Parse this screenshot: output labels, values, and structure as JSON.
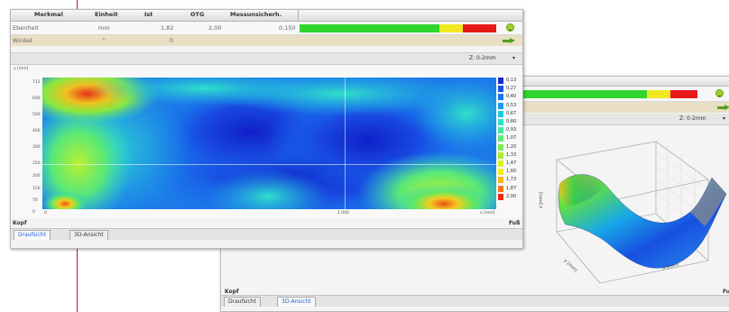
{
  "front": {
    "columns": [
      "Merkmal",
      "Einheit",
      "Ist",
      "OTG",
      "Messunsicherh."
    ],
    "rows": [
      {
        "merkmal": "Ebenheit",
        "einheit": "mm",
        "ist": "1,82",
        "otg": "2,00",
        "mess": "0,150"
      },
      {
        "merkmal": "Winkel",
        "einheit": "°",
        "ist": "0",
        "otg": "",
        "mess": ""
      }
    ],
    "z_select": "Z: 0-2mm",
    "y_axis_label": "y [mm]",
    "x_axis_label": "x [mm]",
    "y_ticks": [
      "712",
      "600",
      "500",
      "400",
      "300",
      "250",
      "200",
      "150",
      "70",
      "0"
    ],
    "x_ticks": [
      "0",
      "1.000"
    ],
    "legend": [
      "0,13",
      "0,27",
      "0,40",
      "0,53",
      "0,67",
      "0,80",
      "0,93",
      "1,07",
      "1,20",
      "1,33",
      "1,47",
      "1,60",
      "1,73",
      "1,87",
      "2,00"
    ],
    "legend_colors": [
      "#1a2ad0",
      "#1650e8",
      "#1078f0",
      "#14a0f0",
      "#20c8e8",
      "#30e0d0",
      "#40e8a8",
      "#5aec78",
      "#78f050",
      "#a8f02a",
      "#d8f020",
      "#f8e818",
      "#f8b818",
      "#f07818",
      "#e82818"
    ],
    "kopf": "Kopf",
    "fuss": "Fuß",
    "tabs": [
      "Draufsicht",
      "3D-Ansicht"
    ],
    "active_tab": 0
  },
  "back": {
    "z_select": "Z: 0-2mm",
    "kopf": "Kopf",
    "fuss": "Fu",
    "tabs": [
      "Draufsicht",
      "3D-Ansicht"
    ],
    "active_tab": 1,
    "axis_z": "z [mm]",
    "axis_y": "y [mm]",
    "axis_x": "x [mm]"
  },
  "colors": {
    "bar_green": "#2ed62e",
    "bar_yellow": "#f2e822",
    "bar_red": "#e81818",
    "row_highlight": "#e8dfc4",
    "marker_line": "#c8102e"
  }
}
